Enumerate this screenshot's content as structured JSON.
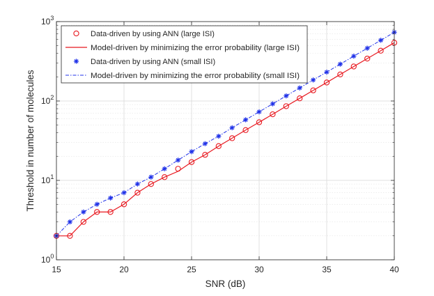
{
  "chart_data": {
    "type": "line",
    "title": "",
    "xlabel": "SNR (dB)",
    "ylabel": "Threshold in number of molecules",
    "xlim": [
      15,
      40
    ],
    "ylim": [
      1,
      1000
    ],
    "yscale": "log",
    "grid": true,
    "legend_position": "top-left",
    "x_ticks": [
      15,
      20,
      25,
      30,
      35,
      40
    ],
    "y_ticks": [
      {
        "value": 1,
        "base": "10",
        "exp": "0"
      },
      {
        "value": 10,
        "base": "10",
        "exp": "1"
      },
      {
        "value": 100,
        "base": "10",
        "exp": "2"
      },
      {
        "value": 1000,
        "base": "10",
        "exp": "3"
      }
    ],
    "x": [
      15,
      16,
      17,
      18,
      19,
      20,
      21,
      22,
      23,
      24,
      25,
      26,
      27,
      28,
      29,
      30,
      31,
      32,
      33,
      34,
      35,
      36,
      37,
      38,
      39,
      40
    ],
    "series": [
      {
        "name": "Data-driven by using ANN (large ISI)",
        "style": "marker-circle",
        "color": "#e8171e",
        "values": [
          2,
          2,
          3,
          4,
          4,
          5,
          7,
          9,
          11,
          14,
          17,
          21,
          27,
          34,
          43,
          54,
          68,
          86,
          108,
          136,
          171,
          216,
          272,
          342,
          430,
          542
        ]
      },
      {
        "name": "Model-driven by minimizing the error probability (large ISI)",
        "style": "line-solid",
        "color": "#e8171e",
        "values": [
          2,
          2,
          3,
          4,
          4,
          5,
          7,
          9,
          11,
          13,
          17,
          21,
          27,
          34,
          43,
          54,
          68,
          86,
          108,
          136,
          171,
          216,
          272,
          342,
          430,
          542
        ]
      },
      {
        "name": "Data-driven by using ANN (small ISI)",
        "style": "marker-star",
        "color": "#1f31e8",
        "values": [
          2,
          3,
          4,
          5,
          6,
          7,
          9,
          11,
          14,
          18,
          23,
          29,
          36,
          46,
          58,
          73,
          92,
          116,
          146,
          184,
          231,
          291,
          367,
          462,
          582,
          733
        ]
      },
      {
        "name": "Model-driven by minimizing the error probability (small ISI)",
        "style": "line-dashdot",
        "color": "#1f31e8",
        "values": [
          2,
          3,
          4,
          5,
          6,
          7,
          9,
          11,
          14,
          18,
          23,
          29,
          36,
          46,
          58,
          73,
          92,
          116,
          146,
          184,
          231,
          291,
          367,
          462,
          582,
          733
        ]
      }
    ]
  }
}
